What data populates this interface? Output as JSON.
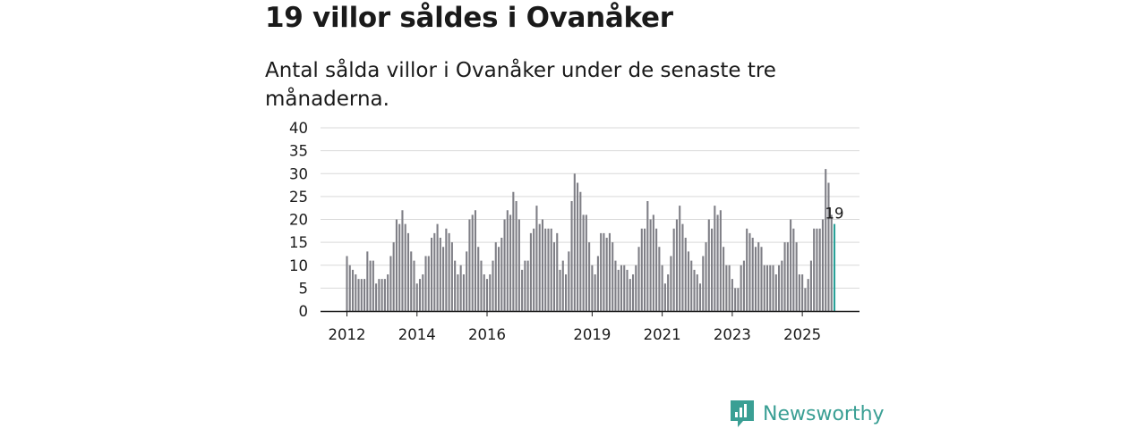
{
  "title": "19 villor såldes i Ovanåker",
  "subtitle": "Antal sålda villor i Ovanåker under de senaste tre månaderna.",
  "brand": {
    "name": "Newsworthy",
    "color": "#3a9f94",
    "icon": "newsworthy-logo-icon"
  },
  "chart_data": {
    "type": "bar",
    "title": "19 villor såldes i Ovanåker",
    "subtitle": "Antal sålda villor i Ovanåker under de senaste tre månaderna.",
    "xlabel": "",
    "ylabel": "",
    "ylim": [
      0,
      40
    ],
    "yticks": [
      0,
      5,
      10,
      15,
      20,
      25,
      30,
      35,
      40
    ],
    "grid": true,
    "bar_color": "#7f7f86",
    "highlight_color": "#2aa198",
    "highlight_label": "19",
    "start_month": "2012-01",
    "xtick_labels": [
      {
        "label": "2012",
        "index": 0
      },
      {
        "label": "2014",
        "index": 24
      },
      {
        "label": "2016",
        "index": 48
      },
      {
        "label": "2019",
        "index": 84
      },
      {
        "label": "2021",
        "index": 108
      },
      {
        "label": "2023",
        "index": 132
      },
      {
        "label": "2025",
        "index": 156
      }
    ],
    "values": [
      12,
      10,
      9,
      8,
      7,
      7,
      7,
      13,
      11,
      11,
      6,
      7,
      7,
      7,
      8,
      12,
      15,
      20,
      19,
      22,
      19,
      17,
      13,
      11,
      6,
      7,
      8,
      12,
      12,
      16,
      17,
      19,
      16,
      14,
      18,
      17,
      15,
      11,
      8,
      10,
      8,
      13,
      20,
      21,
      22,
      14,
      11,
      8,
      7,
      8,
      11,
      15,
      14,
      16,
      20,
      22,
      21,
      26,
      24,
      20,
      9,
      11,
      11,
      17,
      18,
      23,
      19,
      20,
      18,
      18,
      18,
      15,
      17,
      9,
      11,
      8,
      13,
      24,
      30,
      28,
      26,
      21,
      21,
      15,
      10,
      8,
      12,
      17,
      17,
      16,
      17,
      15,
      11,
      9,
      10,
      10,
      9,
      7,
      8,
      10,
      14,
      18,
      18,
      24,
      20,
      21,
      18,
      14,
      10,
      6,
      8,
      12,
      18,
      20,
      23,
      19,
      16,
      13,
      11,
      9,
      8,
      6,
      12,
      15,
      20,
      18,
      23,
      21,
      22,
      14,
      10,
      10,
      7,
      5,
      5,
      10,
      11,
      18,
      17,
      16,
      14,
      15,
      14,
      10,
      10,
      10,
      10,
      8,
      10,
      11,
      15,
      15,
      20,
      18,
      15,
      8,
      8,
      5,
      7,
      11,
      18,
      18,
      18,
      20,
      31,
      28,
      21,
      19
    ]
  }
}
